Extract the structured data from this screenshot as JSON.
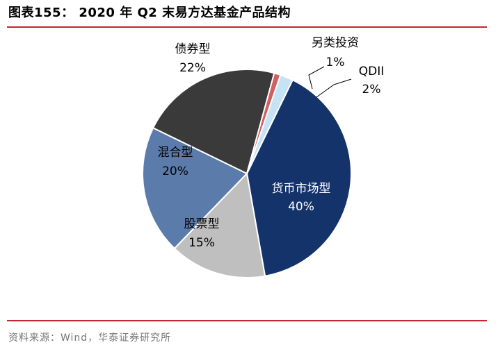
{
  "header": {
    "title": "图表155：  2020 年 Q2 末易方达基金产品结构"
  },
  "footer": {
    "source": "资料来源：Wind，华泰证券研究所"
  },
  "chart_data": {
    "type": "pie",
    "title": "",
    "slices": [
      {
        "label": "货币市场型",
        "value": 40,
        "value_label": "40%",
        "color": "#14336b"
      },
      {
        "label": "股票型",
        "value": 15,
        "value_label": "15%",
        "color": "#bfbfbf"
      },
      {
        "label": "混合型",
        "value": 20,
        "value_label": "20%",
        "color": "#5b7bab"
      },
      {
        "label": "债券型",
        "value": 22,
        "value_label": "22%",
        "color": "#3a3a3a"
      },
      {
        "label": "另类投资",
        "value": 1,
        "value_label": "1%",
        "color": "#d06060"
      },
      {
        "label": "QDII",
        "value": 2,
        "value_label": "2%",
        "color": "#c5e3f5"
      }
    ]
  }
}
